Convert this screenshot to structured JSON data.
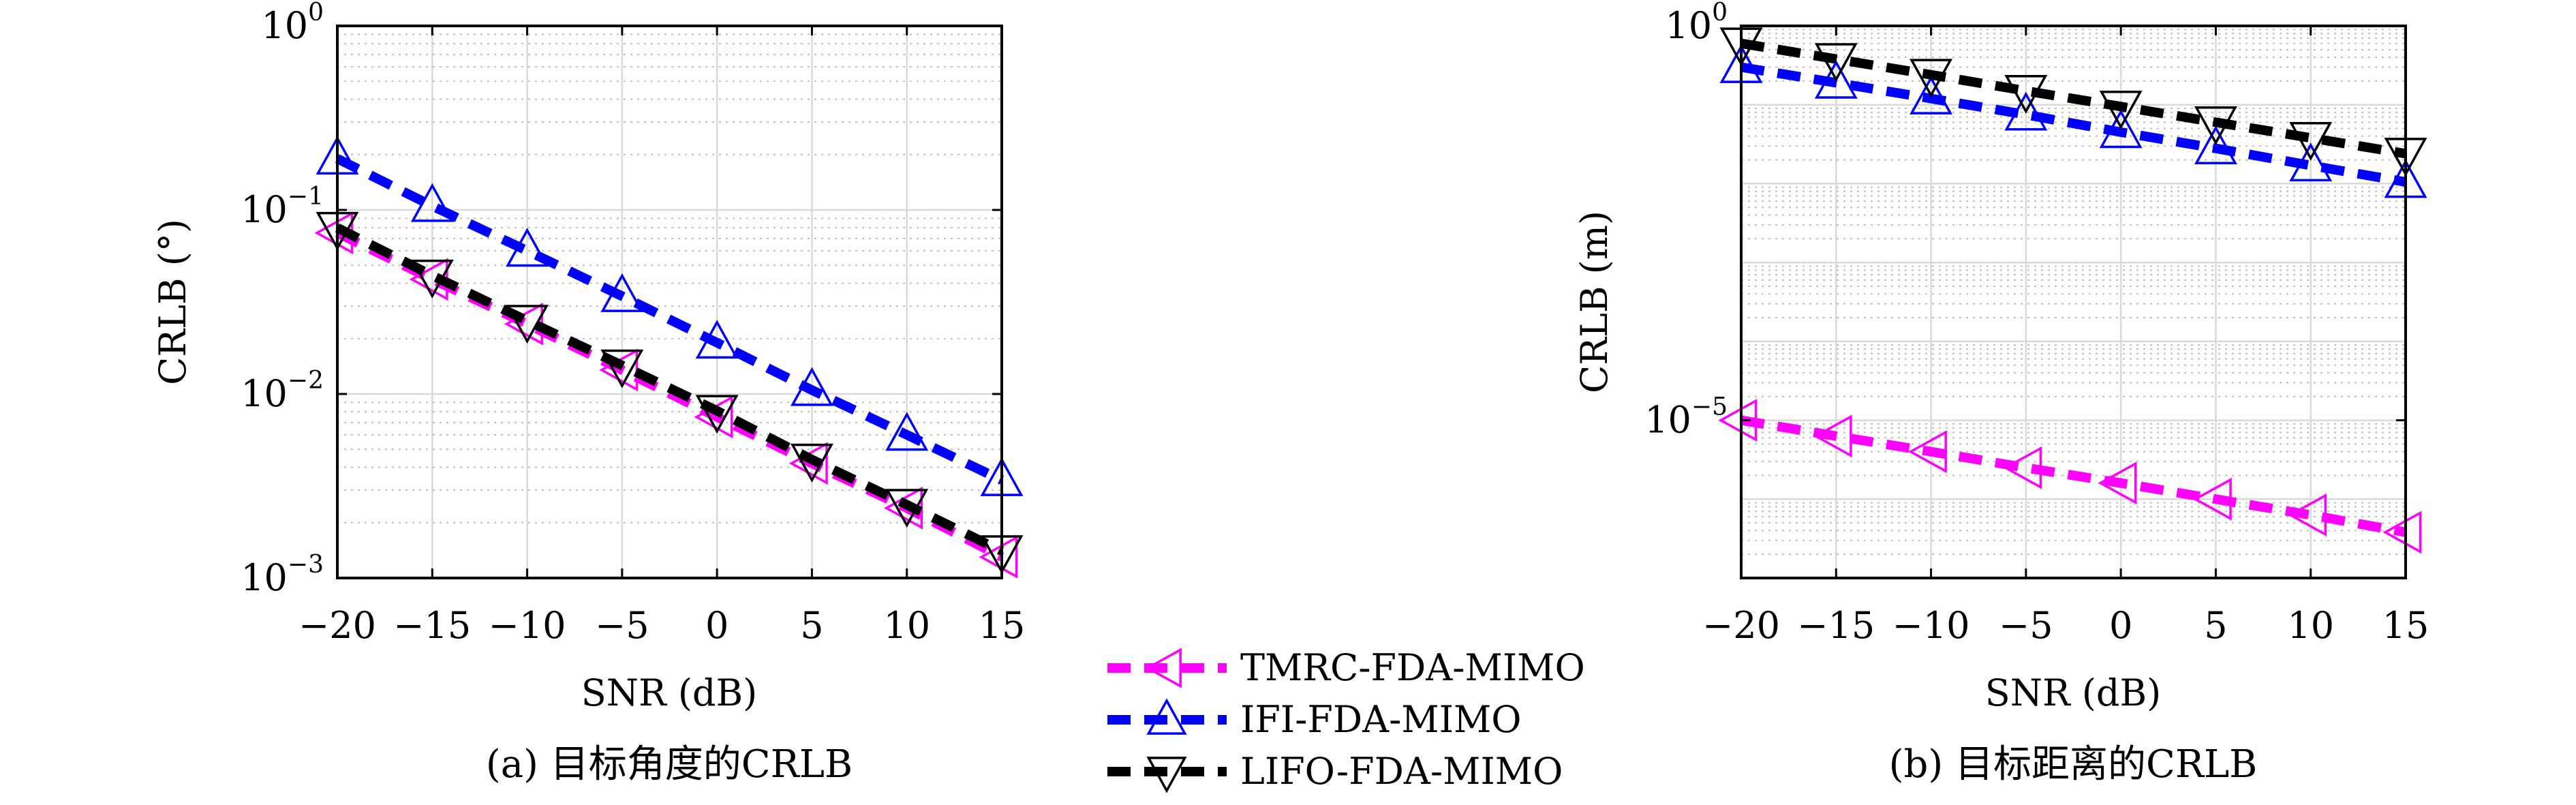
{
  "chart_data": [
    {
      "type": "line",
      "id": "a",
      "caption": "(a) 目标角度的CRLB",
      "xlabel": "SNR (dB)",
      "ylabel": "CRLB (°)",
      "x": [
        -20,
        -15,
        -10,
        -5,
        0,
        5,
        10,
        15
      ],
      "xticks": [
        -20,
        -15,
        -10,
        -5,
        0,
        5,
        10,
        15
      ],
      "xtick_labels": [
        "−20",
        "−15",
        "−10",
        "−5",
        "0",
        "5",
        "10",
        "15"
      ],
      "xlim": [
        -20,
        15
      ],
      "yscale": "log",
      "ylim": [
        0.001,
        1
      ],
      "ytick_exponents": [
        0,
        -1,
        -2,
        -3
      ],
      "grid": true,
      "series": [
        {
          "name": "TMRC-FDA-MIMO",
          "values": [
            0.075,
            0.042,
            0.024,
            0.0135,
            0.0075,
            0.0042,
            0.0024,
            0.0013
          ]
        },
        {
          "name": "IFI-FDA-MIMO",
          "values": [
            0.19,
            0.105,
            0.06,
            0.034,
            0.019,
            0.0105,
            0.006,
            0.0034
          ]
        },
        {
          "name": "LIFO-FDA-MIMO",
          "values": [
            0.08,
            0.044,
            0.025,
            0.0143,
            0.0081,
            0.0044,
            0.0025,
            0.0014
          ]
        }
      ]
    },
    {
      "type": "line",
      "id": "b",
      "caption": "(b) 目标距离的CRLB",
      "xlabel": "SNR (dB)",
      "ylabel": "CRLB (m)",
      "x": [
        -20,
        -15,
        -10,
        -5,
        0,
        5,
        10,
        15
      ],
      "xticks": [
        -20,
        -15,
        -10,
        -5,
        0,
        5,
        10,
        15
      ],
      "xtick_labels": [
        "−20",
        "−15",
        "−10",
        "−5",
        "0",
        "5",
        "10",
        "15"
      ],
      "xlim": [
        -20,
        15
      ],
      "yscale": "log",
      "ylim": [
        1e-07,
        1
      ],
      "ytick_exponents": [
        0,
        -5
      ],
      "grid": true,
      "series": [
        {
          "name": "TMRC-FDA-MIMO",
          "values": [
            1e-05,
            6.3e-06,
            4e-06,
            2.5e-06,
            1.6e-06,
            1e-06,
            6.3e-07,
            3.8e-07
          ]
        },
        {
          "name": "IFI-FDA-MIMO",
          "values": [
            0.3,
            0.19,
            0.12,
            0.075,
            0.045,
            0.028,
            0.017,
            0.0105
          ]
        },
        {
          "name": "LIFO-FDA-MIMO",
          "values": [
            0.6,
            0.38,
            0.24,
            0.15,
            0.095,
            0.06,
            0.038,
            0.024
          ]
        }
      ]
    }
  ],
  "legend": {
    "position": "bottom-center",
    "entries": [
      {
        "label": "TMRC-FDA-MIMO",
        "color": "#ff00ff",
        "marker": "triangle-left"
      },
      {
        "label": "IFI-FDA-MIMO",
        "color": "#0000ff",
        "marker": "triangle-up"
      },
      {
        "label": "LIFO-FDA-MIMO",
        "color": "#000000",
        "marker": "triangle-down"
      }
    ]
  },
  "colors": {
    "TMRC": "#ff00ff",
    "IFI": "#0000ff",
    "LIFO": "#000000"
  }
}
